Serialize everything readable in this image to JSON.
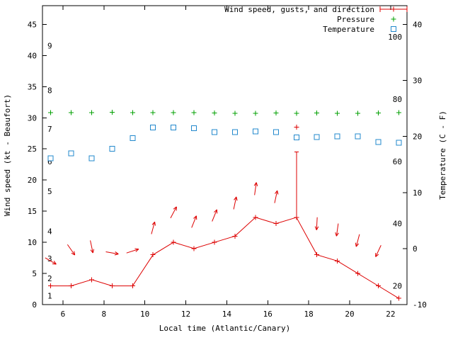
{
  "chart_data": {
    "type": "line",
    "legend": [
      {
        "label": "Wind speed, gusts, and direction",
        "series": "wind",
        "marker": "errorbar-line-plus"
      },
      {
        "label": "Pressure",
        "series": "pressure",
        "marker": "plus"
      },
      {
        "label": "Temperature",
        "series": "temperature",
        "marker": "open-square"
      }
    ],
    "colors": {
      "wind": "#dd0000",
      "pressure": "#00a000",
      "temperature": "#2288cc",
      "axis": "#000000",
      "background": "#ffffff"
    },
    "xlabel": "Local time (Atlantic/Canary)",
    "ylabel_left": "Wind speed (kt - Beaufort)",
    "ylabel_right": "Temperature (C - F)",
    "xlim": [
      5.0,
      22.8
    ],
    "x_ticks": [
      6,
      8,
      10,
      12,
      14,
      16,
      18,
      20,
      22
    ],
    "ylim_left": [
      0,
      48
    ],
    "y_ticks_left": [
      0,
      5,
      10,
      15,
      20,
      25,
      30,
      35,
      40,
      45
    ],
    "y_ticks_right_c": [
      -10,
      0,
      10,
      20,
      30,
      40
    ],
    "beaufort_labels": [
      {
        "label": "1",
        "kt": 1.4
      },
      {
        "label": "2",
        "kt": 4.2
      },
      {
        "label": "3",
        "kt": 7.4
      },
      {
        "label": "4",
        "kt": 11.8
      },
      {
        "label": "5",
        "kt": 18.2
      },
      {
        "label": "6",
        "kt": 23.0
      },
      {
        "label": "7",
        "kt": 28.2
      },
      {
        "label": "8",
        "kt": 34.4
      },
      {
        "label": "9",
        "kt": 41.6
      }
    ],
    "fahrenheit_labels": [
      20,
      40,
      60,
      80,
      100
    ],
    "x": [
      5.4,
      6.4,
      7.4,
      8.4,
      9.4,
      10.4,
      11.4,
      12.4,
      13.4,
      14.4,
      15.4,
      16.4,
      17.4,
      18.4,
      19.4,
      20.4,
      21.4,
      22.4
    ],
    "wind_speed_kt": [
      3,
      3,
      4,
      3,
      3,
      8,
      10,
      9,
      10,
      11,
      14,
      13,
      14,
      8,
      7,
      5,
      3,
      1
    ],
    "gust": {
      "x": 17.4,
      "wind_kt": 14,
      "bar_top_kt": 24.5,
      "peak_marker_kt": 28.5
    },
    "pressure_inhg": [
      30.85,
      30.8,
      30.85,
      30.9,
      30.85,
      30.8,
      30.8,
      30.8,
      30.75,
      30.7,
      30.7,
      30.75,
      30.7,
      30.75,
      30.7,
      30.7,
      30.75,
      30.8
    ],
    "temperature_c": [
      16.1,
      17.0,
      16.1,
      17.8,
      19.7,
      21.6,
      21.6,
      21.5,
      20.8,
      20.8,
      20.9,
      20.8,
      19.8,
      19.9,
      20.0,
      20.0,
      19.0,
      18.9
    ],
    "wind_arrows": [
      {
        "x": 5.4,
        "kt": 7.0,
        "deg": 120
      },
      {
        "x": 6.4,
        "kt": 8.8,
        "deg": 145
      },
      {
        "x": 7.4,
        "kt": 9.3,
        "deg": 168
      },
      {
        "x": 8.4,
        "kt": 8.3,
        "deg": 100
      },
      {
        "x": 9.4,
        "kt": 8.6,
        "deg": 72
      },
      {
        "x": 10.4,
        "kt": 12.3,
        "deg": 15
      },
      {
        "x": 11.4,
        "kt": 14.8,
        "deg": 28
      },
      {
        "x": 12.4,
        "kt": 13.3,
        "deg": 22
      },
      {
        "x": 13.4,
        "kt": 14.3,
        "deg": 22
      },
      {
        "x": 14.4,
        "kt": 16.3,
        "deg": 12
      },
      {
        "x": 15.4,
        "kt": 18.6,
        "deg": 8
      },
      {
        "x": 16.4,
        "kt": 17.3,
        "deg": 12
      },
      {
        "x": 18.4,
        "kt": 13.0,
        "deg": 183
      },
      {
        "x": 19.4,
        "kt": 12.0,
        "deg": 188
      },
      {
        "x": 20.4,
        "kt": 10.3,
        "deg": 195
      },
      {
        "x": 21.4,
        "kt": 8.6,
        "deg": 205
      }
    ]
  }
}
